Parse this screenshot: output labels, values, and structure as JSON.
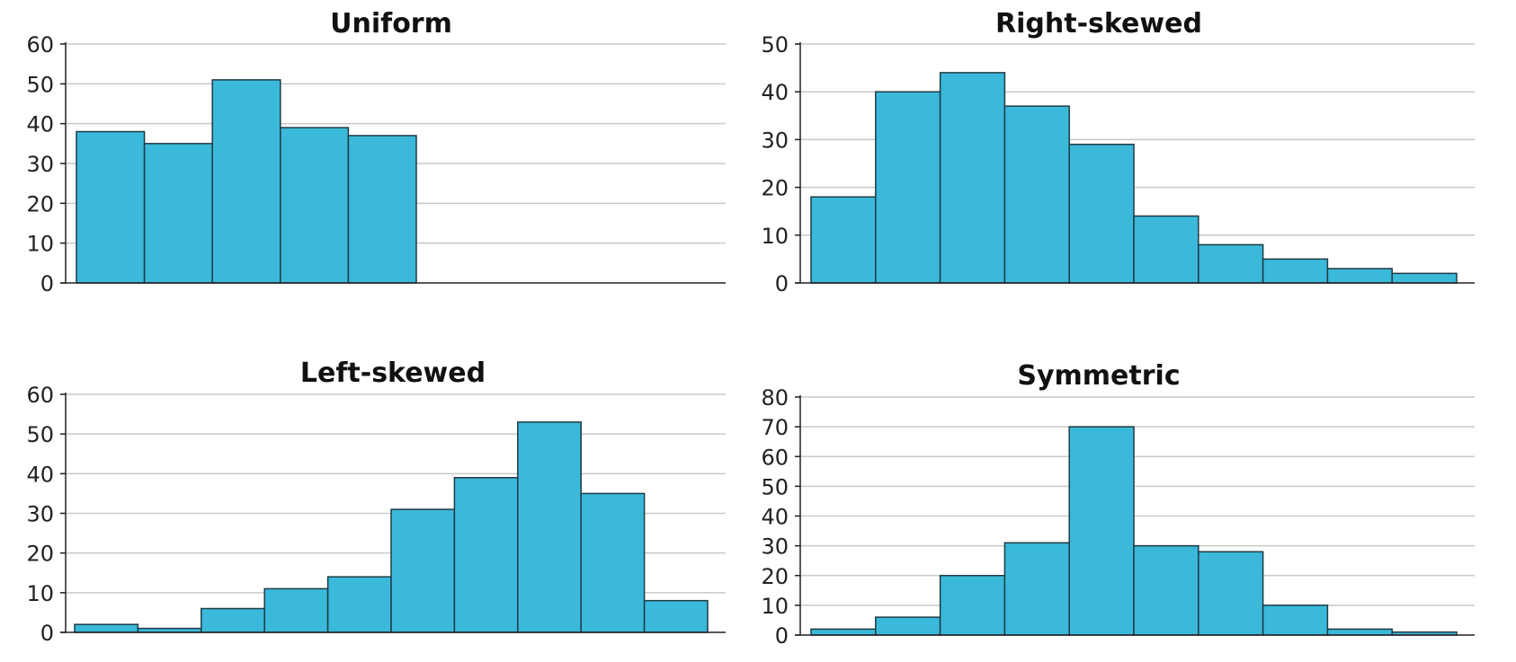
{
  "colors": {
    "bar": "#3bb9da",
    "grid": "#c9c9c9",
    "axis": "#222222"
  },
  "chart_data": [
    {
      "type": "bar",
      "title": "Uniform",
      "xlabel": "",
      "ylabel": "",
      "ylim": [
        0,
        60
      ],
      "yticks": [
        "0",
        "10",
        "20",
        "30",
        "40",
        "50",
        "60"
      ],
      "grid": true,
      "values": [
        38,
        35,
        51,
        39,
        37
      ]
    },
    {
      "type": "bar",
      "title": "Right-skewed",
      "xlabel": "",
      "ylabel": "",
      "ylim": [
        0,
        50
      ],
      "yticks": [
        "0",
        "10",
        "20",
        "30",
        "40",
        "50"
      ],
      "grid": true,
      "values": [
        18,
        40,
        44,
        37,
        29,
        14,
        8,
        5,
        3,
        2
      ]
    },
    {
      "type": "bar",
      "title": "Left-skewed",
      "xlabel": "",
      "ylabel": "",
      "ylim": [
        0,
        60
      ],
      "yticks": [
        "0",
        "10",
        "20",
        "30",
        "40",
        "50",
        "60"
      ],
      "grid": true,
      "values": [
        2,
        1,
        6,
        11,
        14,
        31,
        39,
        53,
        35,
        8
      ]
    },
    {
      "type": "bar",
      "title": "Symmetric",
      "xlabel": "",
      "ylabel": "",
      "ylim": [
        0,
        80
      ],
      "yticks": [
        "0",
        "10",
        "20",
        "30",
        "40",
        "50",
        "60",
        "70",
        "80"
      ],
      "grid": true,
      "values": [
        2,
        6,
        20,
        31,
        70,
        30,
        28,
        10,
        2,
        1
      ]
    }
  ]
}
